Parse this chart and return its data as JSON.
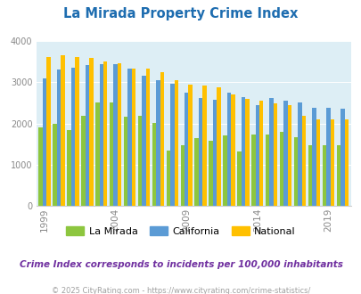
{
  "title": "La Mirada Property Crime Index",
  "subtitle": "Crime Index corresponds to incidents per 100,000 inhabitants",
  "footer": "© 2025 CityRating.com - https://www.cityrating.com/crime-statistics/",
  "years": [
    1999,
    2000,
    2001,
    2002,
    2003,
    2004,
    2005,
    2006,
    2007,
    2008,
    2009,
    2010,
    2011,
    2012,
    2013,
    2014,
    2015,
    2016,
    2017,
    2018,
    2019,
    2020
  ],
  "la_mirada": [
    1900,
    2000,
    1850,
    2180,
    2520,
    2520,
    2160,
    2180,
    2010,
    1340,
    1470,
    1640,
    1580,
    1700,
    1310,
    1730,
    1740,
    1800,
    1660,
    1470,
    1470,
    1470
  ],
  "california": [
    3100,
    3310,
    3350,
    3430,
    3440,
    3440,
    3330,
    3150,
    3050,
    2960,
    2750,
    2620,
    2580,
    2750,
    2640,
    2450,
    2620,
    2560,
    2500,
    2380,
    2380,
    2360
  ],
  "national": [
    3620,
    3660,
    3620,
    3600,
    3500,
    3460,
    3340,
    3330,
    3240,
    3060,
    2950,
    2930,
    2880,
    2710,
    2600,
    2550,
    2490,
    2440,
    2180,
    2110,
    2110,
    2110
  ],
  "colors": {
    "la_mirada": "#8dc63f",
    "california": "#5b9bd5",
    "national": "#ffc000"
  },
  "ylim": [
    0,
    4000
  ],
  "yticks": [
    0,
    1000,
    2000,
    3000,
    4000
  ],
  "xtick_years": [
    1999,
    2004,
    2009,
    2014,
    2019
  ],
  "bg_color": "#ddeef5",
  "title_color": "#1e6db0",
  "subtitle_color": "#7030a0",
  "footer_color": "#a0a0a0",
  "bar_width": 0.28,
  "figsize": [
    4.06,
    3.3
  ],
  "dpi": 100
}
